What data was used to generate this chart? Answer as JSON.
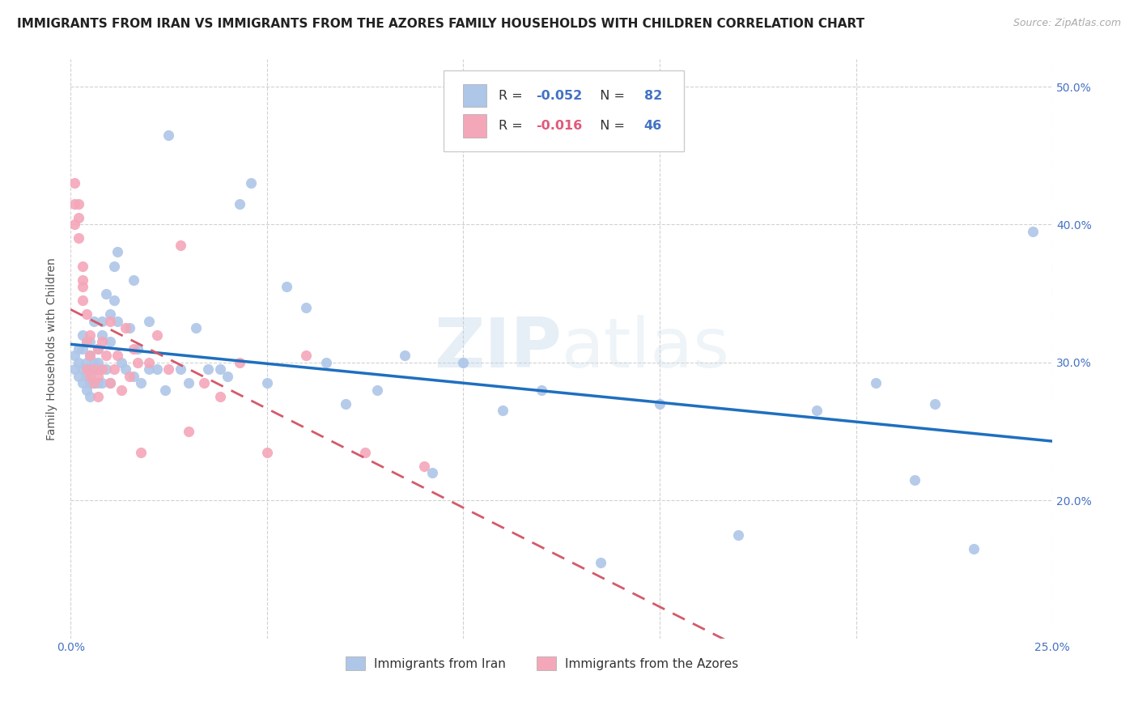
{
  "title": "IMMIGRANTS FROM IRAN VS IMMIGRANTS FROM THE AZORES FAMILY HOUSEHOLDS WITH CHILDREN CORRELATION CHART",
  "source": "Source: ZipAtlas.com",
  "ylabel": "Family Households with Children",
  "legend_iran": "Immigrants from Iran",
  "legend_azores": "Immigrants from the Azores",
  "R_iran": -0.052,
  "N_iran": 82,
  "R_azores": -0.016,
  "N_azores": 46,
  "xlim": [
    0.0,
    0.25
  ],
  "ylim": [
    0.1,
    0.52
  ],
  "color_iran": "#aec6e8",
  "color_azores": "#f4a7b9",
  "line_iran": "#1f6fbf",
  "line_azores": "#d45a6a",
  "background_color": "#ffffff",
  "tick_color": "#4472c4",
  "title_fontsize": 11,
  "axis_label_fontsize": 10,
  "tick_fontsize": 10,
  "watermark": "ZIPatlas",
  "iran_x": [
    0.001,
    0.001,
    0.002,
    0.002,
    0.002,
    0.003,
    0.003,
    0.003,
    0.003,
    0.004,
    0.004,
    0.004,
    0.004,
    0.004,
    0.005,
    0.005,
    0.005,
    0.005,
    0.005,
    0.005,
    0.005,
    0.006,
    0.006,
    0.006,
    0.006,
    0.006,
    0.007,
    0.007,
    0.007,
    0.007,
    0.008,
    0.008,
    0.008,
    0.009,
    0.009,
    0.01,
    0.01,
    0.01,
    0.011,
    0.011,
    0.012,
    0.012,
    0.013,
    0.014,
    0.015,
    0.016,
    0.016,
    0.017,
    0.018,
    0.02,
    0.02,
    0.022,
    0.024,
    0.025,
    0.028,
    0.03,
    0.032,
    0.035,
    0.038,
    0.04,
    0.043,
    0.046,
    0.05,
    0.055,
    0.06,
    0.065,
    0.07,
    0.078,
    0.085,
    0.092,
    0.1,
    0.11,
    0.12,
    0.135,
    0.15,
    0.17,
    0.19,
    0.205,
    0.215,
    0.22,
    0.23,
    0.245
  ],
  "iran_y": [
    0.305,
    0.295,
    0.31,
    0.29,
    0.3,
    0.285,
    0.295,
    0.31,
    0.32,
    0.29,
    0.3,
    0.315,
    0.295,
    0.28,
    0.285,
    0.295,
    0.305,
    0.315,
    0.295,
    0.285,
    0.275,
    0.3,
    0.285,
    0.295,
    0.33,
    0.285,
    0.295,
    0.31,
    0.285,
    0.3,
    0.33,
    0.32,
    0.285,
    0.35,
    0.295,
    0.335,
    0.315,
    0.285,
    0.37,
    0.345,
    0.38,
    0.33,
    0.3,
    0.295,
    0.325,
    0.29,
    0.36,
    0.31,
    0.285,
    0.295,
    0.33,
    0.295,
    0.28,
    0.465,
    0.295,
    0.285,
    0.325,
    0.295,
    0.295,
    0.29,
    0.415,
    0.43,
    0.285,
    0.355,
    0.34,
    0.3,
    0.27,
    0.28,
    0.305,
    0.22,
    0.3,
    0.265,
    0.28,
    0.155,
    0.27,
    0.175,
    0.265,
    0.285,
    0.215,
    0.27,
    0.165,
    0.395
  ],
  "azores_x": [
    0.001,
    0.001,
    0.001,
    0.002,
    0.002,
    0.002,
    0.003,
    0.003,
    0.003,
    0.003,
    0.004,
    0.004,
    0.004,
    0.005,
    0.005,
    0.005,
    0.006,
    0.006,
    0.007,
    0.007,
    0.007,
    0.008,
    0.008,
    0.009,
    0.01,
    0.01,
    0.011,
    0.012,
    0.013,
    0.014,
    0.015,
    0.016,
    0.017,
    0.018,
    0.02,
    0.022,
    0.025,
    0.028,
    0.03,
    0.034,
    0.038,
    0.043,
    0.05,
    0.06,
    0.075,
    0.09
  ],
  "azores_y": [
    0.43,
    0.415,
    0.4,
    0.415,
    0.405,
    0.39,
    0.355,
    0.37,
    0.345,
    0.36,
    0.295,
    0.315,
    0.335,
    0.29,
    0.305,
    0.32,
    0.285,
    0.295,
    0.275,
    0.29,
    0.31,
    0.315,
    0.295,
    0.305,
    0.285,
    0.33,
    0.295,
    0.305,
    0.28,
    0.325,
    0.29,
    0.31,
    0.3,
    0.235,
    0.3,
    0.32,
    0.295,
    0.385,
    0.25,
    0.285,
    0.275,
    0.3,
    0.235,
    0.305,
    0.235,
    0.225
  ]
}
